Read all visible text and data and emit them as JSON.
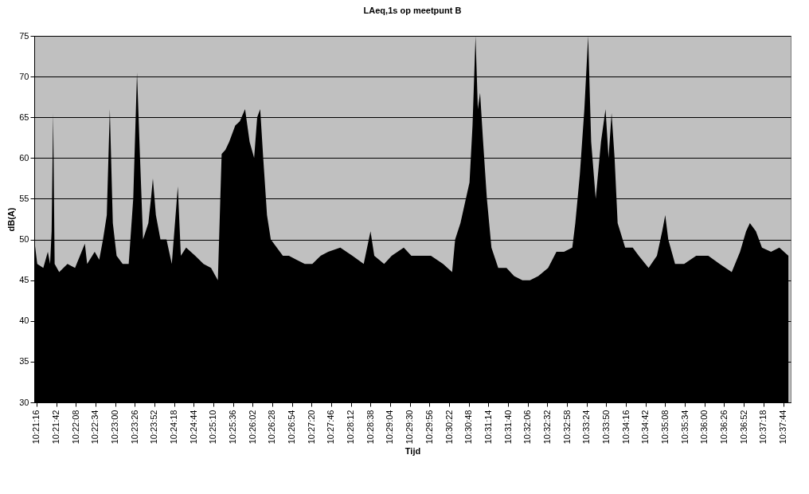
{
  "chart_data": {
    "type": "area",
    "title": "LAeq,1s op meetpunt B",
    "xlabel": "Tijd",
    "ylabel": "dB(A)",
    "color": "#000000",
    "grid": "y",
    "x": [
      10.35361,
      10.35472,
      10.35694,
      10.35861,
      10.35944,
      10.36,
      10.36056,
      10.36111,
      10.36278,
      10.36583,
      10.36861,
      10.37222,
      10.37306,
      10.37583,
      10.3775,
      10.37889,
      10.38028,
      10.38139,
      10.3825,
      10.38389,
      10.38611,
      10.38833,
      10.39,
      10.39139,
      10.3925,
      10.39361,
      10.39556,
      10.39667,
      10.39722,
      10.39833,
      10.4,
      10.40222,
      10.40417,
      10.40639,
      10.4075,
      10.40944,
      10.41278,
      10.41583,
      10.41861,
      10.42111,
      10.4225,
      10.42389,
      10.42528,
      10.4275,
      10.42917,
      10.43111,
      10.43278,
      10.43444,
      10.43556,
      10.43667,
      10.43778,
      10.43917,
      10.44056,
      10.44278,
      10.445,
      10.44722,
      10.45,
      10.45306,
      10.45583,
      10.45889,
      10.46167,
      10.46611,
      10.47056,
      10.47472,
      10.47722,
      10.47861,
      10.48222,
      10.485,
      10.48944,
      10.49222,
      10.49528,
      10.49944,
      10.50389,
      10.50722,
      10.50833,
      10.51028,
      10.51194,
      10.51361,
      10.51472,
      10.51583,
      10.51667,
      10.5175,
      10.51861,
      10.52,
      10.52167,
      10.52417,
      10.52722,
      10.53,
      10.53306,
      10.53583,
      10.53889,
      10.5425,
      10.54556,
      10.54833,
      10.55139,
      10.5525,
      10.55417,
      10.55583,
      10.55722,
      10.55833,
      10.56,
      10.56194,
      10.56361,
      10.56472,
      10.56583,
      10.56694,
      10.56806,
      10.57083,
      10.57361,
      10.57583,
      10.57944,
      10.5825,
      10.58444,
      10.58556,
      10.58667,
      10.58917,
      10.5925,
      10.59694,
      10.60139,
      10.60556,
      10.61,
      10.61306,
      10.61528,
      10.61667,
      10.61889,
      10.62111,
      10.62444,
      10.6275,
      10.63083
    ],
    "values": [
      50,
      47,
      46.5,
      48.5,
      47,
      51,
      65.5,
      47,
      46,
      47,
      46.5,
      49.5,
      47,
      48.5,
      47.5,
      50,
      53,
      66,
      52,
      48,
      47,
      47,
      55,
      70.5,
      60,
      50,
      52,
      55.5,
      57.5,
      53,
      50,
      50,
      47,
      56.5,
      48,
      49,
      48,
      47,
      46.5,
      45,
      60.5,
      61,
      62,
      64,
      64.5,
      66,
      62,
      60,
      65,
      66,
      60,
      53,
      50,
      49,
      48,
      48,
      47.5,
      47,
      47,
      48,
      48.5,
      49,
      48,
      47,
      51,
      48,
      47,
      48,
      49,
      48,
      48,
      48,
      47,
      46,
      50,
      52,
      54.5,
      57,
      64,
      75,
      66,
      68,
      62,
      55,
      49,
      46.5,
      46.5,
      45.5,
      45,
      45,
      45.5,
      46.5,
      48.5,
      48.5,
      49,
      52,
      58,
      66,
      75,
      62,
      55,
      62,
      66,
      60,
      65.5,
      60,
      52,
      49,
      49,
      48,
      46.5,
      48,
      51,
      53,
      50,
      47,
      47,
      48,
      48,
      47,
      46,
      48.5,
      51,
      52,
      51,
      49,
      48.5,
      49,
      48
    ],
    "xlim": [
      10.35361,
      10.63167
    ],
    "ylim": [
      30,
      75
    ],
    "yticks": [
      30,
      35,
      40,
      45,
      50,
      55,
      60,
      65,
      70,
      75
    ],
    "xticks": [
      {
        "value": 10.35444,
        "label": "10:21:16"
      },
      {
        "value": 10.36167,
        "label": "10:21:42"
      },
      {
        "value": 10.36889,
        "label": "10:22:08"
      },
      {
        "value": 10.37611,
        "label": "10:22:34"
      },
      {
        "value": 10.38333,
        "label": "10:23:00"
      },
      {
        "value": 10.39056,
        "label": "10:23:26"
      },
      {
        "value": 10.39778,
        "label": "10:23:52"
      },
      {
        "value": 10.405,
        "label": "10:24:18"
      },
      {
        "value": 10.41222,
        "label": "10:24:44"
      },
      {
        "value": 10.41944,
        "label": "10:25:10"
      },
      {
        "value": 10.42667,
        "label": "10:25:36"
      },
      {
        "value": 10.43389,
        "label": "10:26:02"
      },
      {
        "value": 10.44111,
        "label": "10:26:28"
      },
      {
        "value": 10.44833,
        "label": "10:26:54"
      },
      {
        "value": 10.45556,
        "label": "10:27:20"
      },
      {
        "value": 10.46278,
        "label": "10:27:46"
      },
      {
        "value": 10.47,
        "label": "10:28:12"
      },
      {
        "value": 10.47722,
        "label": "10:28:38"
      },
      {
        "value": 10.48444,
        "label": "10:29:04"
      },
      {
        "value": 10.49167,
        "label": "10:29:30"
      },
      {
        "value": 10.49889,
        "label": "10:29:56"
      },
      {
        "value": 10.50611,
        "label": "10:30:22"
      },
      {
        "value": 10.51333,
        "label": "10:30:48"
      },
      {
        "value": 10.52056,
        "label": "10:31:14"
      },
      {
        "value": 10.52778,
        "label": "10:31:40"
      },
      {
        "value": 10.535,
        "label": "10:32:06"
      },
      {
        "value": 10.54222,
        "label": "10:32:32"
      },
      {
        "value": 10.54944,
        "label": "10:32:58"
      },
      {
        "value": 10.55667,
        "label": "10:33:24"
      },
      {
        "value": 10.56389,
        "label": "10:33:50"
      },
      {
        "value": 10.57111,
        "label": "10:34:16"
      },
      {
        "value": 10.57833,
        "label": "10:34:42"
      },
      {
        "value": 10.58556,
        "label": "10:35:08"
      },
      {
        "value": 10.59278,
        "label": "10:35:34"
      },
      {
        "value": 10.6,
        "label": "10:36:00"
      },
      {
        "value": 10.60722,
        "label": "10:36:26"
      },
      {
        "value": 10.61444,
        "label": "10:36:52"
      },
      {
        "value": 10.62167,
        "label": "10:37:18"
      },
      {
        "value": 10.62889,
        "label": "10:37:44"
      }
    ]
  }
}
